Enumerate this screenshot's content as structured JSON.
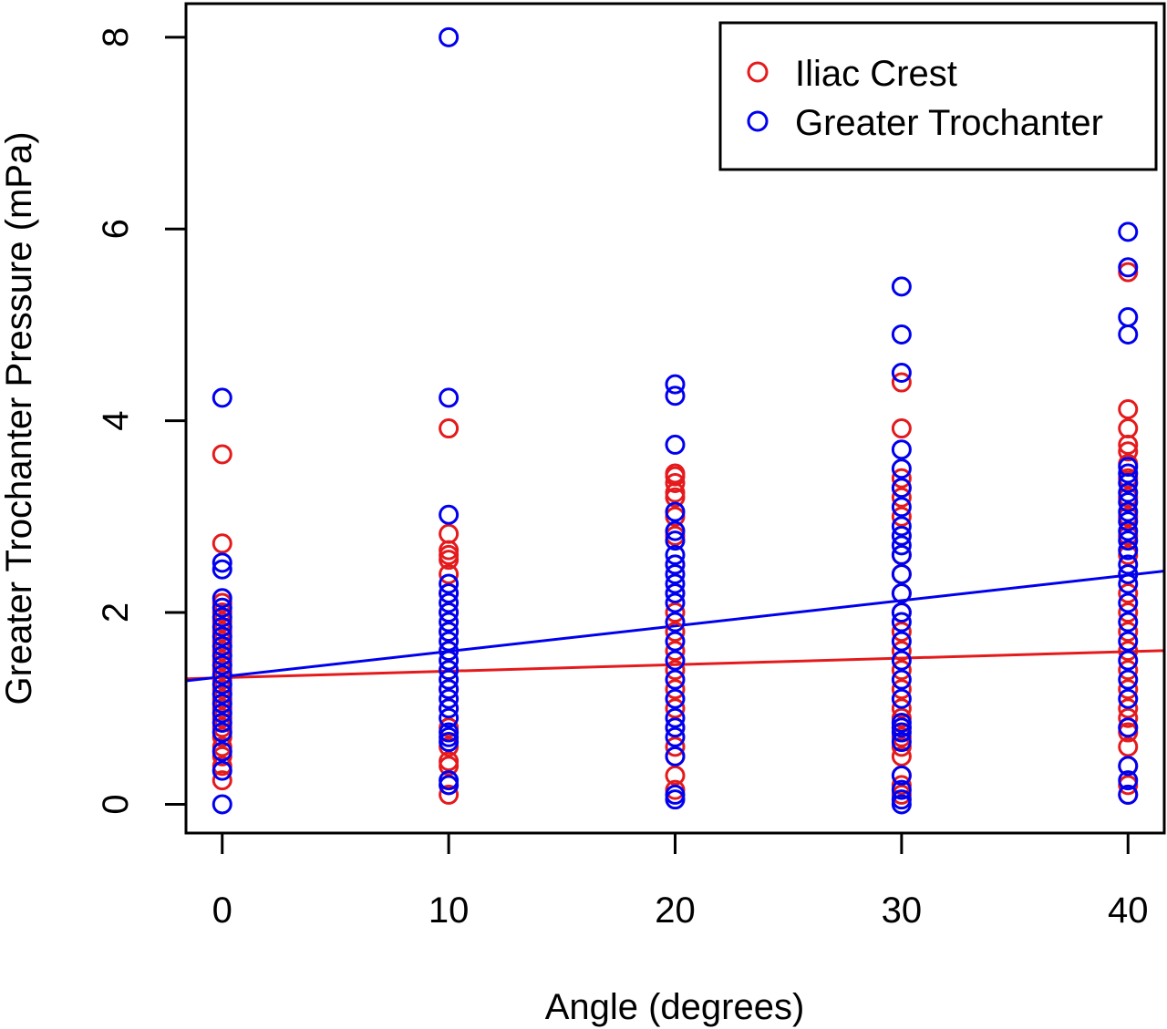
{
  "chart_data": {
    "type": "scatter",
    "xlabel": "Angle (degrees)",
    "ylabel": "Greater Trochanter Pressure (mPa)",
    "xlim": [
      -1.6,
      41.6
    ],
    "ylim": [
      -0.3,
      8.35
    ],
    "xticks": [
      0,
      10,
      20,
      30,
      40
    ],
    "yticks": [
      0,
      2,
      4,
      6,
      8
    ],
    "grid": false,
    "legend_position": "top-right",
    "series": [
      {
        "name": "Iliac Crest",
        "color": "#e41a1c",
        "marker": "open-circle",
        "fit_line": {
          "intercept": 1.32,
          "slope": 0.0068
        },
        "points": [
          [
            0,
            3.65
          ],
          [
            0,
            2.72
          ],
          [
            0,
            2.1
          ],
          [
            0,
            2.0
          ],
          [
            0,
            1.9
          ],
          [
            0,
            1.8
          ],
          [
            0,
            1.7
          ],
          [
            0,
            1.6
          ],
          [
            0,
            1.5
          ],
          [
            0,
            1.4
          ],
          [
            0,
            1.3
          ],
          [
            0,
            1.2
          ],
          [
            0,
            1.1
          ],
          [
            0,
            1.0
          ],
          [
            0,
            0.9
          ],
          [
            0,
            0.8
          ],
          [
            0,
            0.7
          ],
          [
            0,
            0.6
          ],
          [
            0,
            0.5
          ],
          [
            0,
            0.4
          ],
          [
            0,
            0.25
          ],
          [
            10,
            3.92
          ],
          [
            10,
            2.82
          ],
          [
            10,
            2.65
          ],
          [
            10,
            2.6
          ],
          [
            10,
            2.55
          ],
          [
            10,
            2.4
          ],
          [
            10,
            2.2
          ],
          [
            10,
            2.0
          ],
          [
            10,
            1.8
          ],
          [
            10,
            1.6
          ],
          [
            10,
            1.4
          ],
          [
            10,
            1.2
          ],
          [
            10,
            1.0
          ],
          [
            10,
            0.8
          ],
          [
            10,
            0.6
          ],
          [
            10,
            0.45
          ],
          [
            10,
            0.4
          ],
          [
            10,
            0.2
          ],
          [
            10,
            0.1
          ],
          [
            20,
            3.45
          ],
          [
            20,
            3.42
          ],
          [
            20,
            3.35
          ],
          [
            20,
            3.25
          ],
          [
            20,
            3.2
          ],
          [
            20,
            3.0
          ],
          [
            20,
            2.8
          ],
          [
            20,
            2.5
          ],
          [
            20,
            2.2
          ],
          [
            20,
            2.0
          ],
          [
            20,
            1.8
          ],
          [
            20,
            1.6
          ],
          [
            20,
            1.4
          ],
          [
            20,
            1.2
          ],
          [
            20,
            1.0
          ],
          [
            20,
            0.8
          ],
          [
            20,
            0.6
          ],
          [
            20,
            0.5
          ],
          [
            20,
            0.3
          ],
          [
            20,
            0.15
          ],
          [
            30,
            4.4
          ],
          [
            30,
            3.92
          ],
          [
            30,
            3.4
          ],
          [
            30,
            3.3
          ],
          [
            30,
            3.2
          ],
          [
            30,
            3.0
          ],
          [
            30,
            2.8
          ],
          [
            30,
            2.6
          ],
          [
            30,
            2.4
          ],
          [
            30,
            2.2
          ],
          [
            30,
            2.0
          ],
          [
            30,
            1.8
          ],
          [
            30,
            1.6
          ],
          [
            30,
            1.4
          ],
          [
            30,
            1.2
          ],
          [
            30,
            1.0
          ],
          [
            30,
            0.9
          ],
          [
            30,
            0.8
          ],
          [
            30,
            0.7
          ],
          [
            30,
            0.6
          ],
          [
            30,
            0.5
          ],
          [
            30,
            0.3
          ],
          [
            30,
            0.2
          ],
          [
            30,
            0.1
          ],
          [
            40,
            5.55
          ],
          [
            40,
            4.12
          ],
          [
            40,
            3.92
          ],
          [
            40,
            3.75
          ],
          [
            40,
            3.68
          ],
          [
            40,
            3.55
          ],
          [
            40,
            3.4
          ],
          [
            40,
            3.2
          ],
          [
            40,
            3.0
          ],
          [
            40,
            2.8
          ],
          [
            40,
            2.6
          ],
          [
            40,
            2.4
          ],
          [
            40,
            2.2
          ],
          [
            40,
            2.0
          ],
          [
            40,
            1.8
          ],
          [
            40,
            1.6
          ],
          [
            40,
            1.4
          ],
          [
            40,
            1.2
          ],
          [
            40,
            1.0
          ],
          [
            40,
            0.9
          ],
          [
            40,
            0.8
          ],
          [
            40,
            0.75
          ],
          [
            40,
            0.6
          ],
          [
            40,
            0.4
          ],
          [
            40,
            0.2
          ],
          [
            40,
            0.1
          ]
        ]
      },
      {
        "name": "Greater Trochanter",
        "color": "#0000ee",
        "marker": "open-circle",
        "fit_line": {
          "intercept": 1.33,
          "slope": 0.0265
        },
        "points": [
          [
            0,
            4.24
          ],
          [
            0,
            2.52
          ],
          [
            0,
            2.45
          ],
          [
            0,
            2.15
          ],
          [
            0,
            2.05
          ],
          [
            0,
            1.95
          ],
          [
            0,
            1.85
          ],
          [
            0,
            1.75
          ],
          [
            0,
            1.65
          ],
          [
            0,
            1.55
          ],
          [
            0,
            1.45
          ],
          [
            0,
            1.35
          ],
          [
            0,
            1.25
          ],
          [
            0,
            1.15
          ],
          [
            0,
            1.05
          ],
          [
            0,
            0.95
          ],
          [
            0,
            0.85
          ],
          [
            0,
            0.75
          ],
          [
            0,
            0.55
          ],
          [
            0,
            0.35
          ],
          [
            0,
            0.0
          ],
          [
            10,
            8.0
          ],
          [
            10,
            4.24
          ],
          [
            10,
            3.02
          ],
          [
            10,
            2.3
          ],
          [
            10,
            2.2
          ],
          [
            10,
            2.1
          ],
          [
            10,
            2.0
          ],
          [
            10,
            1.9
          ],
          [
            10,
            1.8
          ],
          [
            10,
            1.7
          ],
          [
            10,
            1.6
          ],
          [
            10,
            1.5
          ],
          [
            10,
            1.4
          ],
          [
            10,
            1.3
          ],
          [
            10,
            1.2
          ],
          [
            10,
            1.1
          ],
          [
            10,
            1.0
          ],
          [
            10,
            0.9
          ],
          [
            10,
            0.75
          ],
          [
            10,
            0.7
          ],
          [
            10,
            0.65
          ],
          [
            10,
            0.25
          ],
          [
            10,
            0.2
          ],
          [
            20,
            4.38
          ],
          [
            20,
            4.26
          ],
          [
            20,
            3.75
          ],
          [
            20,
            3.05
          ],
          [
            20,
            2.85
          ],
          [
            20,
            2.75
          ],
          [
            20,
            2.6
          ],
          [
            20,
            2.5
          ],
          [
            20,
            2.4
          ],
          [
            20,
            2.3
          ],
          [
            20,
            2.2
          ],
          [
            20,
            2.1
          ],
          [
            20,
            1.9
          ],
          [
            20,
            1.7
          ],
          [
            20,
            1.5
          ],
          [
            20,
            1.3
          ],
          [
            20,
            1.1
          ],
          [
            20,
            0.9
          ],
          [
            20,
            0.8
          ],
          [
            20,
            0.7
          ],
          [
            20,
            0.5
          ],
          [
            20,
            0.1
          ],
          [
            20,
            0.05
          ],
          [
            30,
            5.4
          ],
          [
            30,
            4.9
          ],
          [
            30,
            4.5
          ],
          [
            30,
            3.7
          ],
          [
            30,
            3.5
          ],
          [
            30,
            3.3
          ],
          [
            30,
            3.1
          ],
          [
            30,
            2.9
          ],
          [
            30,
            2.8
          ],
          [
            30,
            2.7
          ],
          [
            30,
            2.6
          ],
          [
            30,
            2.4
          ],
          [
            30,
            2.2
          ],
          [
            30,
            2.0
          ],
          [
            30,
            1.9
          ],
          [
            30,
            1.7
          ],
          [
            30,
            1.5
          ],
          [
            30,
            1.3
          ],
          [
            30,
            1.1
          ],
          [
            30,
            0.85
          ],
          [
            30,
            0.8
          ],
          [
            30,
            0.75
          ],
          [
            30,
            0.65
          ],
          [
            30,
            0.3
          ],
          [
            30,
            0.15
          ],
          [
            30,
            0.05
          ],
          [
            30,
            0.0
          ],
          [
            40,
            5.97
          ],
          [
            40,
            5.6
          ],
          [
            40,
            5.08
          ],
          [
            40,
            4.9
          ],
          [
            40,
            3.52
          ],
          [
            40,
            3.45
          ],
          [
            40,
            3.35
          ],
          [
            40,
            3.25
          ],
          [
            40,
            3.15
          ],
          [
            40,
            3.05
          ],
          [
            40,
            2.95
          ],
          [
            40,
            2.85
          ],
          [
            40,
            2.75
          ],
          [
            40,
            2.65
          ],
          [
            40,
            2.5
          ],
          [
            40,
            2.4
          ],
          [
            40,
            2.3
          ],
          [
            40,
            2.1
          ],
          [
            40,
            1.9
          ],
          [
            40,
            1.7
          ],
          [
            40,
            1.5
          ],
          [
            40,
            1.3
          ],
          [
            40,
            1.1
          ],
          [
            40,
            0.8
          ],
          [
            40,
            0.4
          ],
          [
            40,
            0.25
          ],
          [
            40,
            0.1
          ]
        ]
      }
    ]
  }
}
